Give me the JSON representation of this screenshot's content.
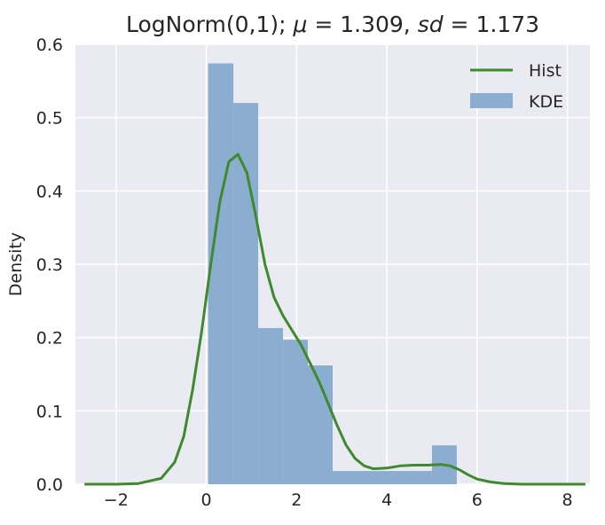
{
  "chart_data": {
    "type": "bar",
    "title": "LogNorm(0,1); μ = 1.309, sd = 1.173",
    "title_parts": {
      "prefix": "LogNorm(0,1); ",
      "mu_symbol": "μ",
      "mu_eq": " = 1.309, ",
      "sd_symbol": "sd",
      "sd_eq": " = 1.173"
    },
    "xlabel": "",
    "ylabel": "Density",
    "xlim": [
      -2.9,
      8.5
    ],
    "ylim": [
      0,
      0.6
    ],
    "xticks": [
      -2,
      0,
      2,
      4,
      6,
      8
    ],
    "xtick_labels": [
      "−2",
      "0",
      "2",
      "4",
      "6",
      "8"
    ],
    "yticks": [
      0.0,
      0.1,
      0.2,
      0.3,
      0.4,
      0.5,
      0.6
    ],
    "ytick_labels": [
      "0.0",
      "0.1",
      "0.2",
      "0.3",
      "0.4",
      "0.5",
      "0.6"
    ],
    "grid": true,
    "legend_position": "top-right",
    "colors": {
      "background": "#eaeaf2",
      "grid": "#ffffff",
      "hist": "#8baed0",
      "kde": "#3f8a2e"
    },
    "histogram": {
      "bin_edges": [
        0.04,
        0.6,
        1.15,
        1.7,
        2.25,
        2.8,
        3.35,
        3.9,
        4.45,
        5.0,
        5.55
      ],
      "densities": [
        0.574,
        0.52,
        0.213,
        0.197,
        0.162,
        0.018,
        0.018,
        0.018,
        0.018,
        0.053
      ]
    },
    "kde": {
      "x": [
        -2.7,
        -2.0,
        -1.5,
        -1.0,
        -0.7,
        -0.5,
        -0.3,
        -0.1,
        0.1,
        0.3,
        0.5,
        0.7,
        0.9,
        1.1,
        1.3,
        1.5,
        1.7,
        1.9,
        2.1,
        2.3,
        2.5,
        2.7,
        2.9,
        3.1,
        3.3,
        3.5,
        3.7,
        4.0,
        4.3,
        4.6,
        4.9,
        5.2,
        5.4,
        5.6,
        5.8,
        6.0,
        6.3,
        6.6,
        7.0,
        7.5,
        8.0,
        8.4
      ],
      "y": [
        0.0,
        0.0,
        0.001,
        0.008,
        0.03,
        0.065,
        0.13,
        0.21,
        0.3,
        0.385,
        0.44,
        0.45,
        0.425,
        0.365,
        0.3,
        0.255,
        0.23,
        0.21,
        0.19,
        0.165,
        0.14,
        0.11,
        0.08,
        0.053,
        0.035,
        0.025,
        0.021,
        0.022,
        0.025,
        0.026,
        0.026,
        0.027,
        0.025,
        0.02,
        0.013,
        0.007,
        0.003,
        0.001,
        0.0,
        0.0,
        0.0,
        0.0
      ]
    },
    "series": [
      {
        "name": "Hist",
        "kind": "line"
      },
      {
        "name": "KDE",
        "kind": "patch"
      }
    ]
  }
}
